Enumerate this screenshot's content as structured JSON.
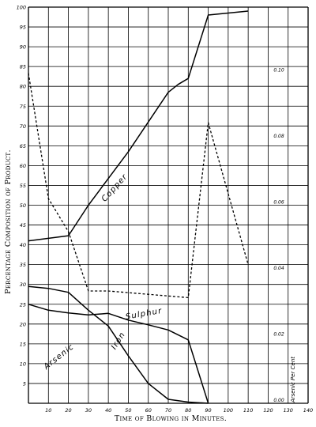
{
  "chart_data": {
    "type": "line",
    "xlabel": "Time of Blowing in Minutes.",
    "ylabel": "Percentage Composition of Product.",
    "right_axis_label": "Arsenic Per Cent",
    "xlim": [
      0,
      140
    ],
    "ylim": [
      0,
      100
    ],
    "right_ylim": [
      0,
      0.12
    ],
    "grid": true,
    "x_ticks": [
      "10",
      "20",
      "30",
      "40",
      "50",
      "60",
      "70",
      "80",
      "90",
      "100",
      "110",
      "120",
      "130",
      "140"
    ],
    "y_ticks": [
      "5",
      "10",
      "15",
      "20",
      "25",
      "30",
      "35",
      "40",
      "45",
      "50",
      "55",
      "60",
      "65",
      "70",
      "75",
      "80",
      "85",
      "90",
      "95",
      "100"
    ],
    "right_ticks": [
      {
        "value": 0.0,
        "label": "0.00"
      },
      {
        "value": 0.02,
        "label": "0.02"
      },
      {
        "value": 0.04,
        "label": "0.04"
      },
      {
        "value": 0.06,
        "label": "0.06"
      },
      {
        "value": 0.08,
        "label": "0.08"
      },
      {
        "value": 0.1,
        "label": "0.10"
      }
    ],
    "series": [
      {
        "name": "Copper",
        "axis": "left",
        "style": "solid",
        "points": [
          [
            0,
            41
          ],
          [
            20,
            42.3
          ],
          [
            30,
            50
          ],
          [
            50,
            63.5
          ],
          [
            70,
            78.5
          ],
          [
            75,
            80.5
          ],
          [
            80,
            82
          ],
          [
            90,
            98
          ],
          [
            110,
            99
          ]
        ],
        "label_at": [
          44,
          54
        ],
        "label_angle": -48
      },
      {
        "name": "Sulphur",
        "axis": "left",
        "style": "solid",
        "points": [
          [
            0,
            25
          ],
          [
            10,
            23.5
          ],
          [
            20,
            22.8
          ],
          [
            30,
            22.3
          ],
          [
            40,
            22.7
          ],
          [
            50,
            21
          ],
          [
            60,
            19.8
          ],
          [
            70,
            18.5
          ],
          [
            80,
            16
          ],
          [
            90,
            0
          ]
        ],
        "label_at": [
          58,
          22
        ],
        "label_angle": -10
      },
      {
        "name": "Iron",
        "axis": "left",
        "style": "solid",
        "points": [
          [
            0,
            29.5
          ],
          [
            10,
            29
          ],
          [
            20,
            28
          ],
          [
            30,
            23.5
          ],
          [
            40,
            19.5
          ],
          [
            50,
            12
          ],
          [
            60,
            5
          ],
          [
            70,
            1
          ],
          [
            80,
            0.3
          ],
          [
            90,
            0
          ]
        ],
        "label_at": [
          46,
          15.5
        ],
        "label_angle": -58
      },
      {
        "name": "Arsenic",
        "axis": "right",
        "style": "dashed",
        "points": [
          [
            0,
            0.1
          ],
          [
            10,
            0.062
          ],
          [
            20,
            0.052
          ],
          [
            30,
            0.034
          ],
          [
            40,
            0.034
          ],
          [
            60,
            0.033
          ],
          [
            80,
            0.032
          ],
          [
            90,
            0.085
          ],
          [
            110,
            0.042
          ]
        ],
        "label_at": [
          16,
          11.3
        ],
        "label_angle": -38
      }
    ]
  }
}
